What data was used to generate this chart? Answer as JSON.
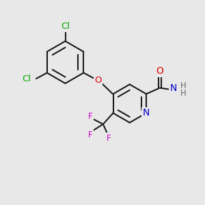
{
  "bg_color": "#e8e8e8",
  "bond_color": "#1a1a1a",
  "bond_width": 1.5,
  "atom_colors": {
    "Cl": "#00aa00",
    "O": "#dd0000",
    "N_ring": "#0000cc",
    "N_amide": "#0000cc",
    "F": "#cc00cc",
    "H": "#666666"
  },
  "font_size": 9.5,
  "font_size_small": 8.5
}
